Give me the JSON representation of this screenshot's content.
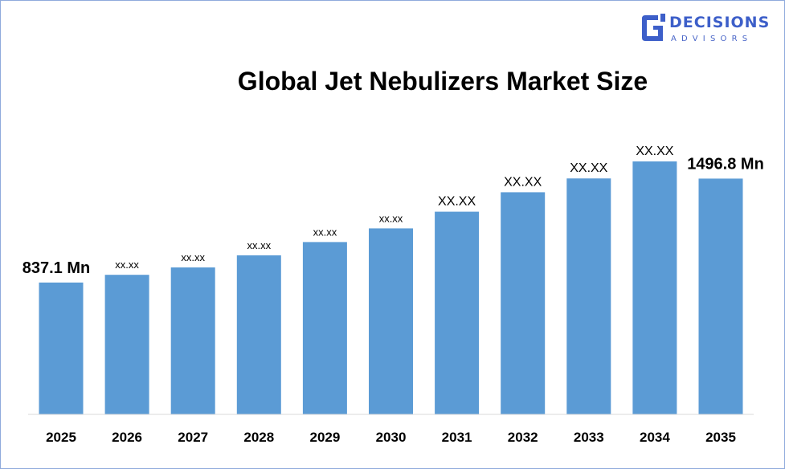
{
  "logo": {
    "main_text": "DECISIONS",
    "sub_text": "ADVISORS",
    "icon": "decisions-advisors-logo-icon",
    "color": "#3d5fc9"
  },
  "chart_data": {
    "type": "bar",
    "title": "Global Jet Nebulizers Market Size",
    "categories": [
      "2025",
      "2026",
      "2027",
      "2028",
      "2029",
      "2030",
      "2031",
      "2032",
      "2033",
      "2034",
      "2035"
    ],
    "values": [
      837.1,
      886,
      933,
      1010,
      1094,
      1181,
      1287,
      1410,
      1498,
      1606,
      1496.8
    ],
    "data_labels": [
      "837.1 Mn",
      "xx.xx",
      "xx.xx",
      "xx.xx",
      "xx.xx",
      "xx.xx",
      "XX.XX",
      "XX.XX",
      "XX.XX",
      "XX.XX",
      "1496.8 Mn"
    ],
    "bar_color": "#5b9bd5",
    "xlabel": "",
    "ylabel": "",
    "ylim": [
      0,
      1800
    ],
    "grid": false,
    "legend": "none"
  }
}
